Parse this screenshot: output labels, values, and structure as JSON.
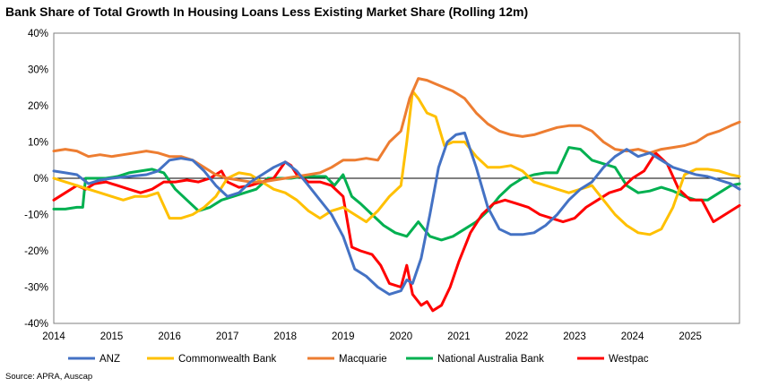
{
  "chart_data": {
    "type": "line",
    "title": "Bank Share of Total Growth In Housing Loans Less Existing Market Share (Rolling 12m)",
    "source": "Source: APRA, Auscap",
    "xlim": [
      2014,
      2025.85
    ],
    "ylim": [
      -40,
      40
    ],
    "y_ticks": [
      -40,
      -30,
      -20,
      -10,
      0,
      10,
      20,
      30,
      40
    ],
    "y_tick_labels": [
      "-40%",
      "-30%",
      "-20%",
      "-10%",
      "0%",
      "10%",
      "20%",
      "30%",
      "40%"
    ],
    "x_ticks": [
      2014,
      2015,
      2016,
      2017,
      2018,
      2019,
      2020,
      2021,
      2022,
      2023,
      2024,
      2025
    ],
    "x_tick_labels": [
      "2014",
      "2015",
      "2016",
      "2017",
      "2018",
      "2019",
      "2020",
      "2021",
      "2022",
      "2023",
      "2024",
      "2025"
    ],
    "grid": false,
    "legend_position": "bottom",
    "series": [
      {
        "name": "ANZ",
        "color": "#4472C4",
        "x": [
          2014.0,
          2014.2,
          2014.4,
          2014.6,
          2014.8,
          2015.0,
          2015.3,
          2015.6,
          2015.8,
          2016.0,
          2016.2,
          2016.4,
          2016.6,
          2016.8,
          2017.0,
          2017.2,
          2017.4,
          2017.6,
          2017.8,
          2018.0,
          2018.2,
          2018.4,
          2018.6,
          2018.8,
          2019.0,
          2019.2,
          2019.4,
          2019.6,
          2019.8,
          2020.0,
          2020.1,
          2020.2,
          2020.35,
          2020.5,
          2020.65,
          2020.8,
          2020.95,
          2021.1,
          2021.3,
          2021.5,
          2021.7,
          2021.9,
          2022.1,
          2022.3,
          2022.5,
          2022.7,
          2022.9,
          2023.1,
          2023.3,
          2023.5,
          2023.7,
          2023.9,
          2024.1,
          2024.3,
          2024.5,
          2024.7,
          2024.9,
          2025.1,
          2025.3,
          2025.5,
          2025.7,
          2025.85
        ],
        "values": [
          2,
          1.5,
          1,
          -1.5,
          -0.5,
          0,
          0.5,
          1,
          2,
          5,
          5.5,
          5,
          2,
          -2,
          -5,
          -4,
          -1,
          1,
          3,
          4.5,
          2,
          -2,
          -6,
          -10,
          -16,
          -25,
          -27,
          -30,
          -32,
          -31,
          -28,
          -29,
          -22,
          -10,
          3,
          10,
          12,
          12.5,
          3,
          -8,
          -14,
          -15.5,
          -15.5,
          -15,
          -13,
          -10,
          -6,
          -3,
          -1,
          3,
          6,
          8,
          6,
          7,
          5,
          3,
          2,
          1,
          0.5,
          -0.5,
          -1.5,
          -3
        ]
      },
      {
        "name": "Commonwealth Bank",
        "color": "#FFC000",
        "x": [
          2014.0,
          2014.2,
          2014.4,
          2014.6,
          2014.8,
          2015.0,
          2015.2,
          2015.4,
          2015.6,
          2015.8,
          2016.0,
          2016.2,
          2016.4,
          2016.6,
          2016.8,
          2017.0,
          2017.2,
          2017.4,
          2017.6,
          2017.8,
          2018.0,
          2018.2,
          2018.4,
          2018.6,
          2018.8,
          2019.0,
          2019.2,
          2019.4,
          2019.6,
          2019.8,
          2020.0,
          2020.1,
          2020.2,
          2020.3,
          2020.45,
          2020.6,
          2020.75,
          2020.9,
          2021.1,
          2021.3,
          2021.5,
          2021.7,
          2021.9,
          2022.1,
          2022.3,
          2022.5,
          2022.7,
          2022.9,
          2023.1,
          2023.3,
          2023.5,
          2023.7,
          2023.9,
          2024.1,
          2024.3,
          2024.5,
          2024.7,
          2024.9,
          2025.1,
          2025.3,
          2025.5,
          2025.7,
          2025.85
        ],
        "values": [
          0,
          -1,
          -2,
          -3,
          -4,
          -5,
          -6,
          -5,
          -5,
          -4,
          -11,
          -11,
          -10,
          -8,
          -5,
          0,
          1.5,
          1,
          -1,
          -3,
          -4,
          -6,
          -9,
          -11,
          -9,
          -8,
          -10,
          -12,
          -9,
          -5,
          -2,
          10,
          24,
          22,
          18,
          17,
          9,
          10,
          10,
          6,
          3,
          3,
          3.5,
          2,
          -1,
          -2,
          -3,
          -4,
          -3,
          -2,
          -6,
          -10,
          -13,
          -15,
          -15.5,
          -14,
          -8,
          1,
          2.5,
          2.5,
          2,
          1,
          0.5
        ]
      },
      {
        "name": "Macquarie",
        "color": "#ED7D31",
        "x": [
          2014.0,
          2014.2,
          2014.4,
          2014.6,
          2014.8,
          2015.0,
          2015.2,
          2015.4,
          2015.6,
          2015.8,
          2016.0,
          2016.2,
          2016.4,
          2016.6,
          2016.8,
          2017.0,
          2017.2,
          2017.4,
          2017.6,
          2017.8,
          2018.0,
          2018.2,
          2018.4,
          2018.6,
          2018.8,
          2019.0,
          2019.2,
          2019.4,
          2019.6,
          2019.8,
          2020.0,
          2020.15,
          2020.3,
          2020.45,
          2020.6,
          2020.75,
          2020.9,
          2021.1,
          2021.3,
          2021.5,
          2021.7,
          2021.9,
          2022.1,
          2022.3,
          2022.5,
          2022.7,
          2022.9,
          2023.1,
          2023.3,
          2023.5,
          2023.7,
          2023.9,
          2024.1,
          2024.3,
          2024.5,
          2024.7,
          2024.9,
          2025.1,
          2025.3,
          2025.5,
          2025.7,
          2025.85
        ],
        "values": [
          7.5,
          8,
          7.5,
          6,
          6.5,
          6,
          6.5,
          7,
          7.5,
          7,
          6,
          6,
          5,
          3,
          1,
          0,
          -0.5,
          -1,
          -1,
          -0.5,
          0,
          0.5,
          1,
          1.5,
          3,
          5,
          5,
          5.5,
          5,
          10,
          13,
          22,
          27.5,
          27,
          26,
          25,
          24,
          22,
          18,
          15,
          13,
          12,
          11.5,
          12,
          13,
          14,
          14.5,
          14.5,
          13,
          10,
          8,
          7.5,
          8,
          7,
          8,
          8.5,
          9,
          10,
          12,
          13,
          14.5,
          15.5
        ]
      },
      {
        "name": "National Australia Bank",
        "color": "#00B050",
        "x": [
          2014.0,
          2014.2,
          2014.4,
          2014.5,
          2014.55,
          2014.7,
          2014.9,
          2015.1,
          2015.3,
          2015.5,
          2015.7,
          2015.9,
          2016.1,
          2016.3,
          2016.5,
          2016.7,
          2016.9,
          2017.1,
          2017.3,
          2017.5,
          2017.7,
          2017.9,
          2018.1,
          2018.3,
          2018.5,
          2018.7,
          2018.85,
          2019.0,
          2019.15,
          2019.3,
          2019.5,
          2019.7,
          2019.9,
          2020.1,
          2020.3,
          2020.5,
          2020.7,
          2020.9,
          2021.1,
          2021.3,
          2021.5,
          2021.7,
          2021.9,
          2022.1,
          2022.3,
          2022.5,
          2022.7,
          2022.9,
          2023.1,
          2023.3,
          2023.5,
          2023.7,
          2023.9,
          2024.1,
          2024.3,
          2024.5,
          2024.7,
          2024.9,
          2025.1,
          2025.3,
          2025.5,
          2025.7,
          2025.85
        ],
        "values": [
          -8.5,
          -8.5,
          -8,
          -8,
          0,
          0,
          0,
          0.5,
          1.5,
          2,
          2.5,
          1.5,
          -3,
          -6,
          -9,
          -8,
          -6,
          -5,
          -4,
          -3,
          0,
          0,
          0,
          0.5,
          0.5,
          0.5,
          -2,
          1,
          -5,
          -7,
          -10,
          -13,
          -15,
          -16,
          -12,
          -16,
          -17,
          -16,
          -14,
          -12,
          -9,
          -5,
          -2,
          0,
          1,
          1.5,
          1.5,
          8.5,
          8,
          5,
          4,
          3,
          -2,
          -4,
          -3.5,
          -2.5,
          -3.5,
          -5,
          -6,
          -6,
          -4,
          -2,
          -1.5
        ]
      },
      {
        "name": "Westpac",
        "color": "#FF0000",
        "x": [
          2014.0,
          2014.2,
          2014.4,
          2014.55,
          2014.7,
          2014.9,
          2015.1,
          2015.3,
          2015.5,
          2015.7,
          2015.9,
          2016.1,
          2016.3,
          2016.5,
          2016.7,
          2016.9,
          2017.0,
          2017.2,
          2017.4,
          2017.6,
          2017.8,
          2018.0,
          2018.1,
          2018.2,
          2018.4,
          2018.6,
          2018.8,
          2019.0,
          2019.15,
          2019.3,
          2019.5,
          2019.65,
          2019.8,
          2020.0,
          2020.1,
          2020.2,
          2020.35,
          2020.45,
          2020.55,
          2020.7,
          2020.85,
          2021.0,
          2021.2,
          2021.4,
          2021.6,
          2021.8,
          2022.0,
          2022.2,
          2022.4,
          2022.6,
          2022.8,
          2023.0,
          2023.2,
          2023.4,
          2023.6,
          2023.8,
          2024.0,
          2024.2,
          2024.4,
          2024.6,
          2024.8,
          2025.0,
          2025.2,
          2025.4,
          2025.6,
          2025.85
        ],
        "values": [
          -6,
          -4,
          -2,
          -3,
          -1.5,
          -1,
          -2,
          -3,
          -4,
          -3,
          -1,
          -1,
          -0.5,
          -1,
          0,
          2,
          -1,
          -2.5,
          -2,
          -1,
          0,
          4.5,
          3.5,
          1,
          -1,
          -1,
          -2,
          -5,
          -19,
          -20,
          -21,
          -24,
          -29,
          -30,
          -24,
          -32,
          -35,
          -34,
          -36.5,
          -35,
          -30,
          -23,
          -15,
          -10,
          -7,
          -6,
          -7,
          -8,
          -10,
          -11,
          -12,
          -11,
          -8,
          -6,
          -4,
          -3,
          0,
          2,
          7,
          4,
          -3,
          -6,
          -6,
          -12,
          -10,
          -7.5
        ]
      }
    ]
  }
}
